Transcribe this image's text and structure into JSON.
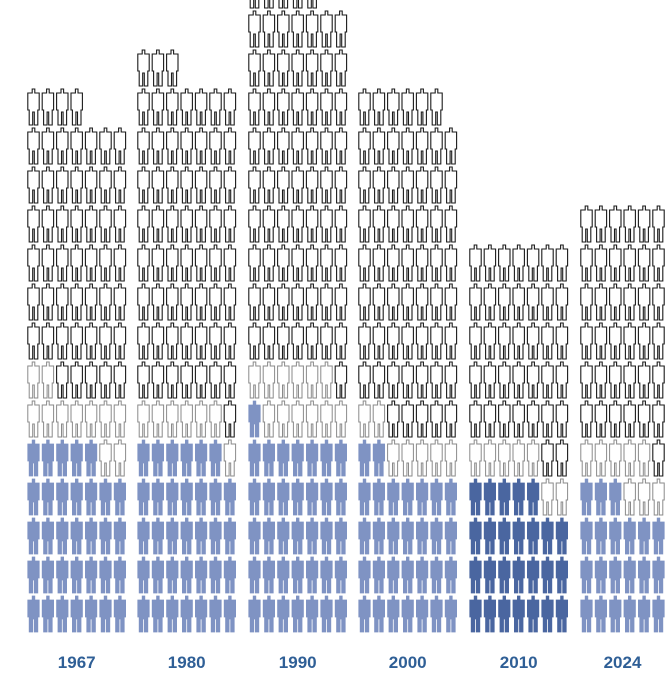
{
  "chart_data": {
    "type": "pictogram",
    "colors": {
      "filled": "#7f93c3",
      "filled_highlight": "#4a66a0",
      "outline": "#1a1a1a",
      "outline_light": "#8a8a8a",
      "label": "#2f5f96"
    },
    "icon_name": "person-icon",
    "groups": [
      {
        "label": "1967",
        "cols": 7,
        "stacks": [
          {
            "style": "filled",
            "count": 33
          },
          {
            "style": "outline_light",
            "count": 11
          },
          {
            "style": "outline",
            "count": 51
          }
        ]
      },
      {
        "label": "1980",
        "cols": 7,
        "stacks": [
          {
            "style": "filled",
            "count": 34
          },
          {
            "style": "outline_light",
            "count": 7
          },
          {
            "style": "outline",
            "count": 60
          }
        ]
      },
      {
        "label": "1990",
        "cols": 7,
        "stacks": [
          {
            "style": "filled",
            "count": 36
          },
          {
            "style": "outline_light",
            "count": 12
          },
          {
            "style": "outline",
            "count": 69
          }
        ]
      },
      {
        "label": "2000",
        "cols": 7,
        "stacks": [
          {
            "style": "filled",
            "count": 30
          },
          {
            "style": "outline_light",
            "count": 7
          },
          {
            "style": "outline",
            "count": 60
          }
        ]
      },
      {
        "label": "2010",
        "cols": 7,
        "stacks": [
          {
            "style": "filled_highlight",
            "count": 26
          },
          {
            "style": "outline_light",
            "count": 7
          },
          {
            "style": "outline",
            "count": 37
          }
        ]
      },
      {
        "label": "2024",
        "cols": 6,
        "stacks": [
          {
            "style": "filled",
            "count": 21
          },
          {
            "style": "outline_light",
            "count": 8
          },
          {
            "style": "outline",
            "count": 37
          }
        ]
      }
    ]
  }
}
